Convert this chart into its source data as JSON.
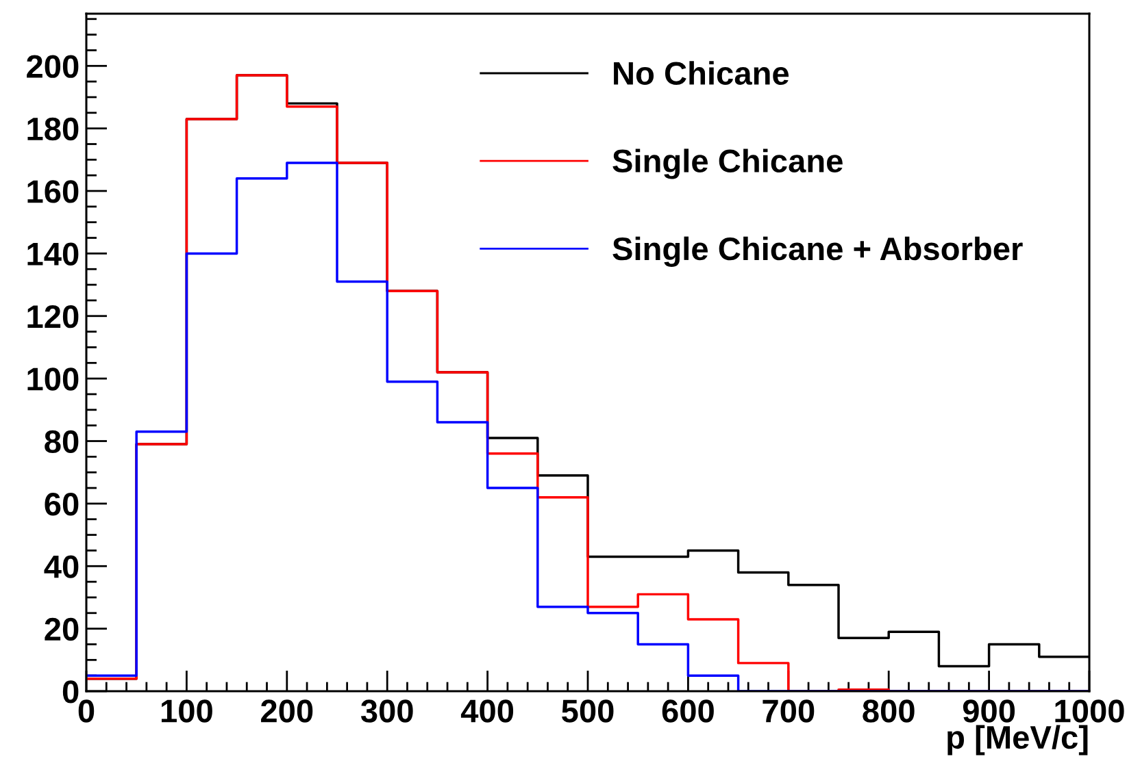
{
  "chart_data": {
    "type": "histogram",
    "xlabel": "p [MeV/c]",
    "bins": [
      0,
      50,
      100,
      150,
      200,
      250,
      300,
      350,
      400,
      450,
      500,
      550,
      600,
      650,
      700,
      750,
      800,
      850,
      900,
      950,
      1000
    ],
    "series": [
      {
        "name": "No Chicane",
        "color": "#000000",
        "values": [
          4,
          79,
          183,
          197,
          188,
          169,
          128,
          102,
          81,
          69,
          43,
          43,
          45,
          38,
          34,
          17,
          19,
          8,
          15,
          11
        ]
      },
      {
        "name": "Single Chicane",
        "color": "#ff0000",
        "values": [
          4,
          79,
          183,
          197,
          187,
          169,
          128,
          102,
          76,
          62,
          27,
          31,
          23,
          9,
          0,
          0.5,
          0,
          0,
          0,
          0
        ]
      },
      {
        "name": "Single Chicane + Absorber",
        "color": "#0000ff",
        "values": [
          5,
          83,
          140,
          164,
          169,
          131,
          99,
          86,
          65,
          27,
          25,
          15,
          5,
          0,
          0,
          0,
          0,
          0,
          0,
          0
        ]
      }
    ],
    "xlim": [
      0,
      1000
    ],
    "ylim": [
      0,
      216.7
    ],
    "xticks": [
      0,
      {
        "value": 20,
        "label": null
      },
      {
        "value": 40,
        "label": null
      },
      {
        "value": 60,
        "label": null
      },
      {
        "value": 80,
        "label": null
      },
      100,
      {
        "value": 120,
        "label": null
      },
      {
        "value": 140,
        "label": null
      },
      {
        "value": 160,
        "label": null
      },
      {
        "value": 180,
        "label": null
      },
      200,
      {
        "value": 220,
        "label": null
      },
      {
        "value": 240,
        "label": null
      },
      {
        "value": 260,
        "label": null
      },
      {
        "value": 280,
        "label": null
      },
      300,
      {
        "value": 320,
        "label": null
      },
      {
        "value": 340,
        "label": null
      },
      {
        "value": 360,
        "label": null
      },
      {
        "value": 380,
        "label": null
      },
      400,
      {
        "value": 420,
        "label": null
      },
      {
        "value": 440,
        "label": null
      },
      {
        "value": 460,
        "label": null
      },
      {
        "value": 480,
        "label": null
      },
      500,
      {
        "value": 520,
        "label": null
      },
      {
        "value": 540,
        "label": null
      },
      {
        "value": 560,
        "label": null
      },
      {
        "value": 580,
        "label": null
      },
      600,
      {
        "value": 620,
        "label": null
      },
      {
        "value": 640,
        "label": null
      },
      {
        "value": 660,
        "label": null
      },
      {
        "value": 680,
        "label": null
      },
      700,
      {
        "value": 720,
        "label": null
      },
      {
        "value": 740,
        "label": null
      },
      {
        "value": 760,
        "label": null
      },
      {
        "value": 780,
        "label": null
      },
      800,
      {
        "value": 820,
        "label": null
      },
      {
        "value": 840,
        "label": null
      },
      {
        "value": 860,
        "label": null
      },
      {
        "value": 880,
        "label": null
      },
      900,
      {
        "value": 920,
        "label": null
      },
      {
        "value": 940,
        "label": null
      },
      {
        "value": 960,
        "label": null
      },
      {
        "value": 980,
        "label": null
      },
      1000
    ],
    "yticks": [
      0,
      {
        "value": 5,
        "label": null
      },
      {
        "value": 10,
        "label": null
      },
      {
        "value": 15,
        "label": null
      },
      20,
      {
        "value": 25,
        "label": null
      },
      {
        "value": 30,
        "label": null
      },
      {
        "value": 35,
        "label": null
      },
      40,
      {
        "value": 45,
        "label": null
      },
      {
        "value": 50,
        "label": null
      },
      {
        "value": 55,
        "label": null
      },
      60,
      {
        "value": 65,
        "label": null
      },
      {
        "value": 70,
        "label": null
      },
      {
        "value": 75,
        "label": null
      },
      80,
      {
        "value": 85,
        "label": null
      },
      {
        "value": 90,
        "label": null
      },
      {
        "value": 95,
        "label": null
      },
      100,
      {
        "value": 105,
        "label": null
      },
      {
        "value": 110,
        "label": null
      },
      {
        "value": 115,
        "label": null
      },
      120,
      {
        "value": 125,
        "label": null
      },
      {
        "value": 130,
        "label": null
      },
      {
        "value": 135,
        "label": null
      },
      140,
      {
        "value": 145,
        "label": null
      },
      {
        "value": 150,
        "label": null
      },
      {
        "value": 155,
        "label": null
      },
      160,
      {
        "value": 165,
        "label": null
      },
      {
        "value": 170,
        "label": null
      },
      {
        "value": 175,
        "label": null
      },
      180,
      {
        "value": 185,
        "label": null
      },
      {
        "value": 190,
        "label": null
      },
      {
        "value": 195,
        "label": null
      },
      200,
      {
        "value": 205,
        "label": null
      },
      {
        "value": 210,
        "label": null
      },
      {
        "value": 215,
        "label": null
      }
    ],
    "legend": "top right"
  }
}
